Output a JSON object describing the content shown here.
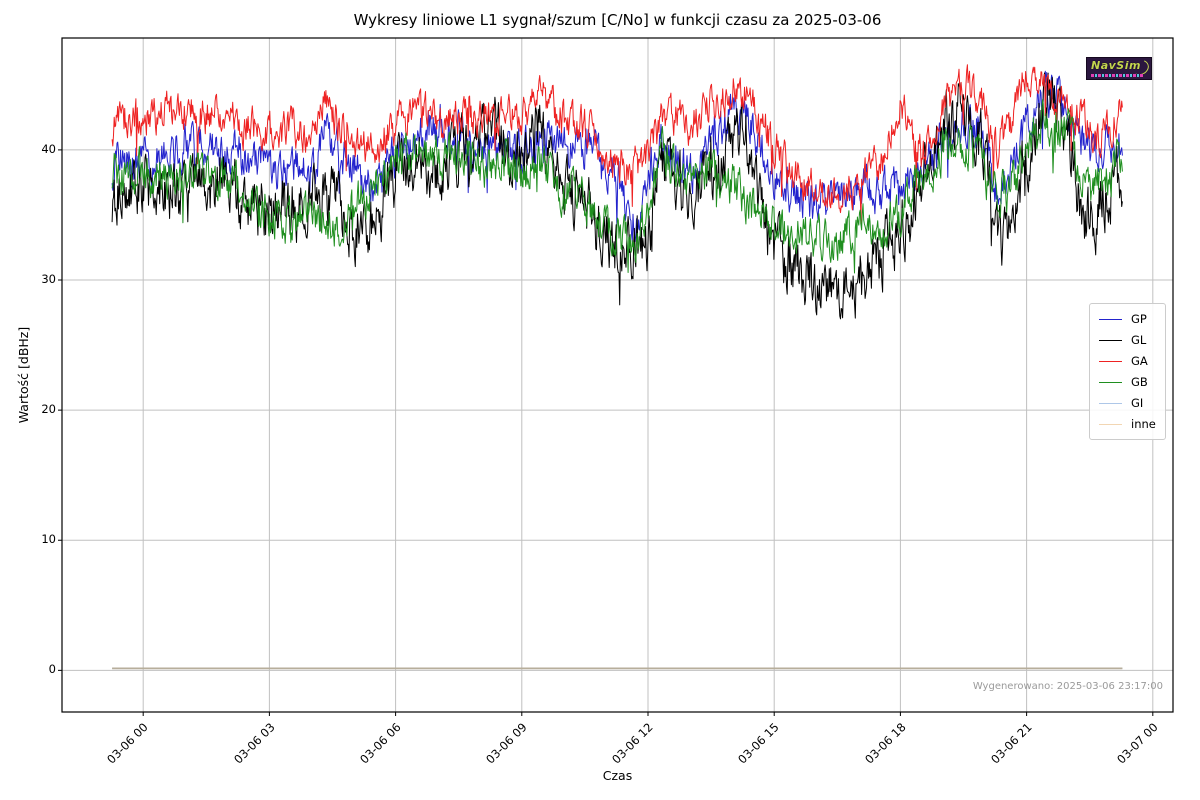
{
  "footer": {
    "generated": "Wygenerowano: 2025-03-06 23:17:00"
  },
  "logo": {
    "text": "NavSim"
  },
  "chart_data": {
    "type": "line",
    "title": "Wykresy liniowe L1 sygnał/szum [C/No] w funkcji czasu za 2025-03-06",
    "xlabel": "Czas",
    "ylabel": "Wartość [dBHz]",
    "grid": true,
    "grid_color": "#c0c0c0",
    "legend_position": "right",
    "x_ticks": [
      "03-06 00",
      "03-06 03",
      "03-06 06",
      "03-06 09",
      "03-06 12",
      "03-06 15",
      "03-06 18",
      "03-06 21",
      "03-07 00"
    ],
    "x_tick_hours": [
      0,
      3,
      6,
      9,
      12,
      15,
      18,
      21,
      24
    ],
    "y_ticks": [
      0,
      10,
      20,
      30,
      40
    ],
    "x_range_hours": [
      -1.93,
      24.48
    ],
    "y_range": [
      -3.2,
      48.6
    ],
    "data_time_span": {
      "start_hour": -0.74,
      "end_hour": 23.28
    },
    "series": [
      {
        "name": "GP",
        "color": "#2323cd",
        "noise": 0.8,
        "seed": 11,
        "width": 1,
        "keypoints": [
          [
            -0.74,
            38.8
          ],
          [
            0,
            39.2
          ],
          [
            0.5,
            39.6
          ],
          [
            1,
            40.3
          ],
          [
            1.5,
            40.0
          ],
          [
            2,
            39.8
          ],
          [
            2.5,
            39.3
          ],
          [
            3,
            38.6
          ],
          [
            3.5,
            38.0
          ],
          [
            4,
            38.6
          ],
          [
            4.3,
            41.0
          ],
          [
            5,
            39.0
          ],
          [
            5.5,
            36.6
          ],
          [
            6,
            39.5
          ],
          [
            6.5,
            41.0
          ],
          [
            7,
            42.0
          ],
          [
            7.5,
            41.4
          ],
          [
            8,
            40.0
          ],
          [
            8.5,
            39.6
          ],
          [
            9,
            40.0
          ],
          [
            9.5,
            40.6
          ],
          [
            10,
            40.2
          ],
          [
            10.5,
            40.4
          ],
          [
            11,
            39.0
          ],
          [
            11.4,
            37.0
          ],
          [
            11.7,
            33.8
          ],
          [
            12,
            38.0
          ],
          [
            12.3,
            40.8
          ],
          [
            12.6,
            39.0
          ],
          [
            13,
            38.6
          ],
          [
            13.5,
            40.0
          ],
          [
            14,
            42.8
          ],
          [
            14.3,
            43.2
          ],
          [
            15,
            38.2
          ],
          [
            15.5,
            36.6
          ],
          [
            16,
            35.8
          ],
          [
            16.5,
            36.2
          ],
          [
            17,
            37.2
          ],
          [
            17.5,
            36.8
          ],
          [
            18,
            37.6
          ],
          [
            18.5,
            38.2
          ],
          [
            19,
            41.0
          ],
          [
            19.5,
            42.6
          ],
          [
            20,
            41.2
          ],
          [
            20.3,
            37.2
          ],
          [
            20.6,
            38.6
          ],
          [
            21,
            42.0
          ],
          [
            21.5,
            44.6
          ],
          [
            22,
            42.4
          ],
          [
            22.5,
            40.2
          ],
          [
            23,
            40.6
          ],
          [
            23.28,
            41.4
          ]
        ]
      },
      {
        "name": "GL",
        "color": "#000000",
        "noise": 1.15,
        "seed": 22,
        "width": 1,
        "keypoints": [
          [
            -0.74,
            36.4
          ],
          [
            0,
            37.6
          ],
          [
            0.5,
            37.0
          ],
          [
            1,
            35.8
          ],
          [
            1.5,
            37.6
          ],
          [
            2,
            37.8
          ],
          [
            2.5,
            36.2
          ],
          [
            3,
            35.0
          ],
          [
            3.5,
            35.6
          ],
          [
            4,
            36.2
          ],
          [
            4.5,
            36.6
          ],
          [
            5,
            33.8
          ],
          [
            5.5,
            35.0
          ],
          [
            6,
            38.6
          ],
          [
            6.5,
            39.4
          ],
          [
            7,
            38.2
          ],
          [
            7.6,
            40.0
          ],
          [
            8.3,
            41.6
          ],
          [
            9,
            39.0
          ],
          [
            9.4,
            41.8
          ],
          [
            10,
            37.2
          ],
          [
            10.5,
            36.0
          ],
          [
            11,
            33.6
          ],
          [
            11.5,
            31.9
          ],
          [
            12,
            33.0
          ],
          [
            12.3,
            39.8
          ],
          [
            12.6,
            38.0
          ],
          [
            13,
            36.4
          ],
          [
            13.6,
            38.5
          ],
          [
            14.3,
            41.5
          ],
          [
            14.6,
            35.5
          ],
          [
            15,
            32.4
          ],
          [
            15.5,
            31.0
          ],
          [
            16,
            29.6
          ],
          [
            16.5,
            28.6
          ],
          [
            17,
            30.0
          ],
          [
            17.5,
            31.6
          ],
          [
            18,
            34.0
          ],
          [
            18.5,
            37.2
          ],
          [
            19,
            41.2
          ],
          [
            19.5,
            43.6
          ],
          [
            20,
            40.0
          ],
          [
            20.3,
            33.6
          ],
          [
            20.55,
            32.2
          ],
          [
            21,
            39.6
          ],
          [
            21.5,
            44.6
          ],
          [
            22,
            41.0
          ],
          [
            22.3,
            35.2
          ],
          [
            22.6,
            34.6
          ],
          [
            23,
            37.4
          ],
          [
            23.28,
            38.2
          ]
        ]
      },
      {
        "name": "GA",
        "color": "#ee2222",
        "noise": 0.7,
        "seed": 33,
        "width": 1,
        "keypoints": [
          [
            -0.74,
            42.0
          ],
          [
            0,
            42.5
          ],
          [
            0.5,
            42.9
          ],
          [
            1,
            43.0
          ],
          [
            1.5,
            42.6
          ],
          [
            2,
            42.9
          ],
          [
            2.5,
            41.6
          ],
          [
            3,
            41.3
          ],
          [
            3.5,
            41.8
          ],
          [
            4,
            41.2
          ],
          [
            4.3,
            43.8
          ],
          [
            5,
            39.9
          ],
          [
            5.5,
            40.2
          ],
          [
            6,
            42.0
          ],
          [
            6.6,
            43.0
          ],
          [
            7,
            42.1
          ],
          [
            7.5,
            42.5
          ],
          [
            8,
            42.3
          ],
          [
            8.5,
            43.0
          ],
          [
            9,
            42.5
          ],
          [
            9.45,
            44.4
          ],
          [
            10,
            42.2
          ],
          [
            10.5,
            41.6
          ],
          [
            11,
            40.0
          ],
          [
            11.5,
            38.4
          ],
          [
            12,
            39.0
          ],
          [
            12.4,
            43.0
          ],
          [
            13,
            41.6
          ],
          [
            13.5,
            43.6
          ],
          [
            14,
            44.6
          ],
          [
            14.4,
            44.9
          ],
          [
            15,
            40.0
          ],
          [
            15.5,
            38.0
          ],
          [
            16,
            36.8
          ],
          [
            16.5,
            36.2
          ],
          [
            17,
            37.6
          ],
          [
            17.5,
            38.6
          ],
          [
            18,
            43.8
          ],
          [
            18.5,
            39.6
          ],
          [
            19,
            43.0
          ],
          [
            19.5,
            45.0
          ],
          [
            20,
            43.4
          ],
          [
            20.3,
            39.6
          ],
          [
            20.6,
            42.0
          ],
          [
            21,
            46.0
          ],
          [
            21.3,
            45.7
          ],
          [
            21.6,
            44.0
          ],
          [
            22,
            43.2
          ],
          [
            22.6,
            41.0
          ],
          [
            23,
            41.6
          ],
          [
            23.28,
            43.3
          ]
        ]
      },
      {
        "name": "GB",
        "color": "#1f8f1f",
        "noise": 0.8,
        "seed": 44,
        "width": 1,
        "keypoints": [
          [
            -0.74,
            38.4
          ],
          [
            0,
            38.0
          ],
          [
            0.5,
            38.3
          ],
          [
            1,
            37.6
          ],
          [
            1.5,
            37.9
          ],
          [
            2,
            37.5
          ],
          [
            2.5,
            36.4
          ],
          [
            3,
            34.5
          ],
          [
            3.5,
            34.6
          ],
          [
            4,
            35.6
          ],
          [
            4.5,
            33.9
          ],
          [
            5,
            36.0
          ],
          [
            5.5,
            37.6
          ],
          [
            6,
            39.0
          ],
          [
            6.5,
            39.5
          ],
          [
            7,
            39.3
          ],
          [
            7.5,
            39.6
          ],
          [
            8,
            38.6
          ],
          [
            8.5,
            39.5
          ],
          [
            9,
            38.0
          ],
          [
            9.5,
            38.6
          ],
          [
            10,
            37.0
          ],
          [
            10.5,
            36.0
          ],
          [
            11,
            34.0
          ],
          [
            11.5,
            32.5
          ],
          [
            12,
            35.0
          ],
          [
            12.3,
            39.9
          ],
          [
            12.6,
            38.5
          ],
          [
            13,
            37.5
          ],
          [
            13.5,
            38.0
          ],
          [
            14,
            37.5
          ],
          [
            14.5,
            35.5
          ],
          [
            15,
            34.5
          ],
          [
            15.5,
            33.5
          ],
          [
            16,
            33.0
          ],
          [
            16.5,
            33.2
          ],
          [
            17,
            34.0
          ],
          [
            17.5,
            33.6
          ],
          [
            18,
            35.5
          ],
          [
            18.5,
            37.6
          ],
          [
            19,
            40.0
          ],
          [
            19.5,
            41.0
          ],
          [
            20,
            38.5
          ],
          [
            20.3,
            36.4
          ],
          [
            20.6,
            37.0
          ],
          [
            21,
            40.1
          ],
          [
            21.5,
            42.3
          ],
          [
            22,
            41.4
          ],
          [
            22.3,
            38.0
          ],
          [
            22.6,
            36.9
          ],
          [
            23,
            38.2
          ],
          [
            23.28,
            40.0
          ]
        ]
      },
      {
        "name": "GI",
        "color": "#aec7e8",
        "noise": 0,
        "seed": 55,
        "width": 1.2,
        "keypoints": [
          [
            -0.74,
            0.15
          ],
          [
            23.28,
            0.15
          ]
        ]
      },
      {
        "name": "inne",
        "color": "#f2d6b3",
        "plot_color": "#b7ae9b",
        "noise": 0,
        "seed": 66,
        "width": 1.8,
        "keypoints": [
          [
            -0.74,
            0.15
          ],
          [
            23.28,
            0.15
          ]
        ]
      }
    ]
  }
}
